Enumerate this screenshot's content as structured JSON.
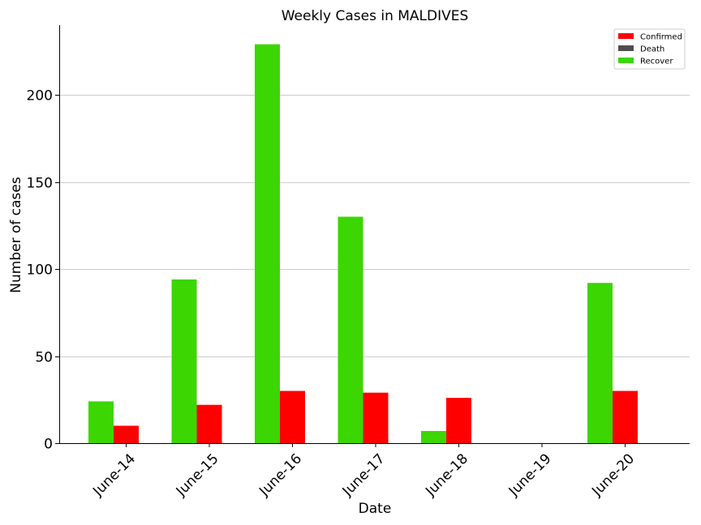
{
  "chart_data": {
    "type": "bar",
    "title": "Weekly Cases in MALDIVES",
    "xlabel": "Date",
    "ylabel": "Number of cases",
    "categories": [
      "June-14",
      "June-15",
      "June-16",
      "June-17",
      "June-18",
      "June-19",
      "June-20"
    ],
    "ylim": [
      0,
      240
    ],
    "yticks": [
      0,
      50,
      100,
      150,
      200
    ],
    "grid": "horizontal",
    "legend_position": "top-right",
    "series": [
      {
        "name": "Confirmed",
        "color": "#ff0000",
        "values": [
          10,
          22,
          30,
          29,
          26,
          0,
          30
        ]
      },
      {
        "name": "Death",
        "color": "#4d4d4d",
        "values": [
          0,
          0,
          0,
          0,
          0,
          0,
          0
        ]
      },
      {
        "name": "Recover",
        "color": "#3cd602",
        "values": [
          24,
          94,
          229,
          130,
          7,
          0,
          92
        ]
      }
    ]
  }
}
